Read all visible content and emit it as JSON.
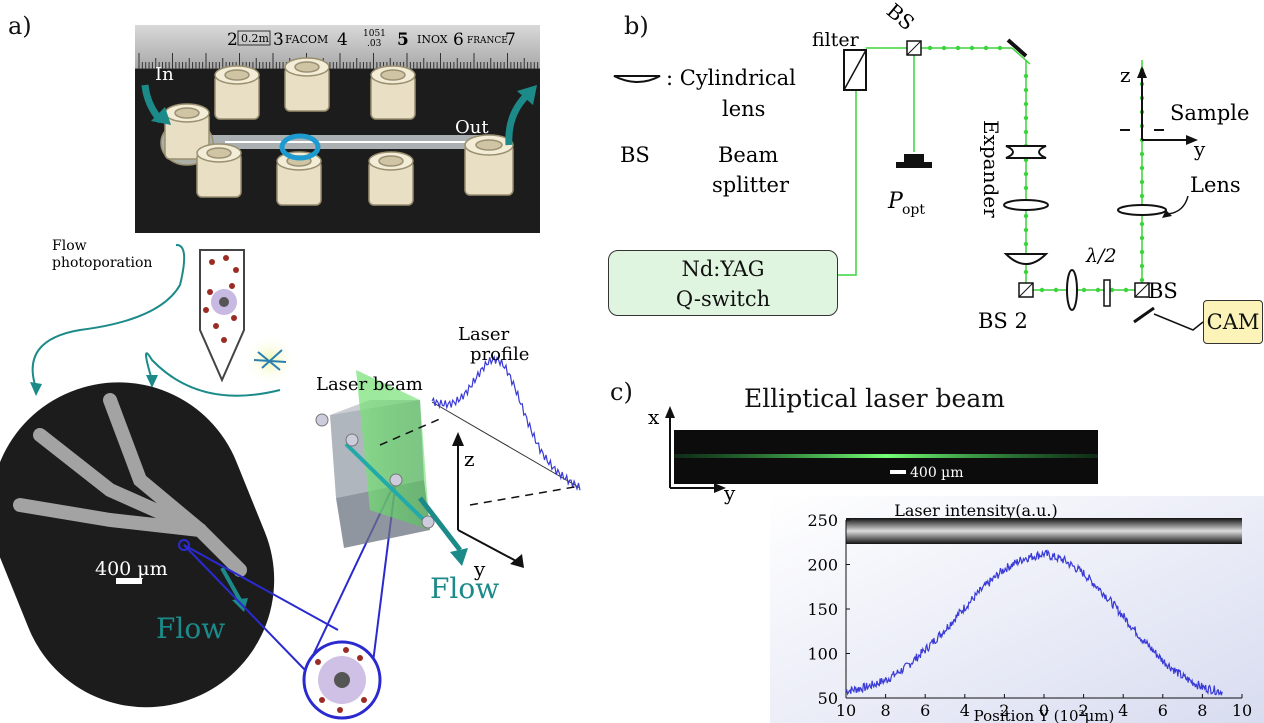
{
  "panel_a": {
    "letter": "a)",
    "photo_in": "In",
    "photo_out": "Out",
    "ruler_text": [
      "2",
      "0.2m",
      "3",
      "FACOM",
      "4",
      "1051",
      ".03",
      "5",
      "INOX",
      "6",
      "FRANCE",
      "7"
    ],
    "flow_photoporation": [
      "Flow",
      "photoporation"
    ],
    "scale_bar": "400 µm",
    "flow_left": "Flow",
    "flow_right": "Flow",
    "laser_beam": "Laser beam",
    "laser_profile": [
      "Laser",
      "profile"
    ],
    "axis_z": "z",
    "axis_y": "y"
  },
  "panel_b": {
    "letter": "b)",
    "legend_cyl_label": ": Cylindrical",
    "legend_cyl_label2": "lens",
    "legend_bs_abbr": "BS",
    "legend_bs_label": "Beam",
    "legend_bs_label2": "splitter",
    "filter": "filter",
    "bs_top": "BS",
    "p_opt": "P",
    "p_opt_sub": "opt",
    "expander": "Expander",
    "laser_line1": "Nd:YAG",
    "laser_line2": "Q-switch",
    "bs2": "BS 2",
    "lambda": "λ/2",
    "bs_right": "BS",
    "cam": "CAM",
    "lens": "Lens",
    "sample": "Sample",
    "axis_z": "z",
    "axis_y": "y"
  },
  "panel_c": {
    "letter": "c)",
    "title": "Elliptical laser beam",
    "axis_x": "x",
    "axis_y": "y",
    "scale_bar": "400 µm",
    "plot_title": "Laser intensity(a.u.)",
    "xlabel": "Position Y (10³µm)"
  },
  "colors": {
    "teal": "#1d8a8a",
    "green_beam": "#3cd43c",
    "plot_line": "#3a3ad6",
    "blue_line": "#2a2ad0"
  },
  "chart_data": {
    "type": "line",
    "title": "Laser intensity(a.u.)",
    "xlabel": "Position Y (10³µm)",
    "ylabel": "",
    "x_tick_labels": [
      "10",
      "8",
      "6",
      "4",
      "2",
      "0",
      "2",
      "4",
      "6",
      "8",
      "10"
    ],
    "y_ticks": [
      50,
      100,
      150,
      200,
      250
    ],
    "ylim": [
      50,
      250
    ],
    "xlim": [
      -10,
      10
    ],
    "series": [
      {
        "x": [
          -10,
          -9,
          -8,
          -7,
          -6,
          -5,
          -4,
          -3,
          -2,
          -1,
          0,
          1,
          2,
          3,
          4,
          5,
          6,
          7,
          8,
          9
        ],
        "values": [
          58,
          62,
          70,
          84,
          104,
          127,
          152,
          175,
          195,
          207,
          212,
          205,
          190,
          168,
          142,
          115,
          92,
          74,
          62,
          57
        ]
      }
    ]
  }
}
